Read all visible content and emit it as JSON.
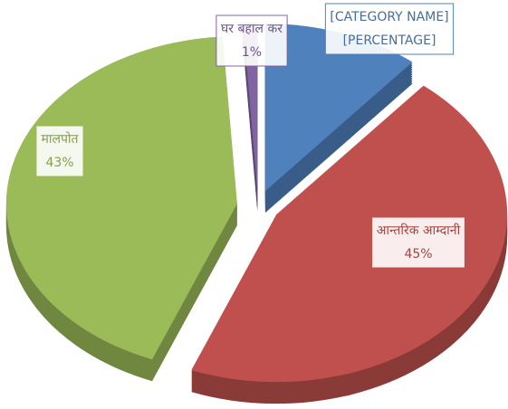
{
  "chart_data": {
    "type": "pie",
    "categories": [
      "[CATEGORY NAME]",
      "आन्तरिक आम्दानी",
      "मालपोत",
      "घर बहाल कर"
    ],
    "values": [
      11,
      45,
      43,
      1
    ],
    "value_labels": [
      "[PERCENTAGE]",
      "45%",
      "43%",
      "1%"
    ],
    "colors": [
      "#4f81bd",
      "#c0504d",
      "#9bbb59",
      "#8064a2"
    ]
  }
}
